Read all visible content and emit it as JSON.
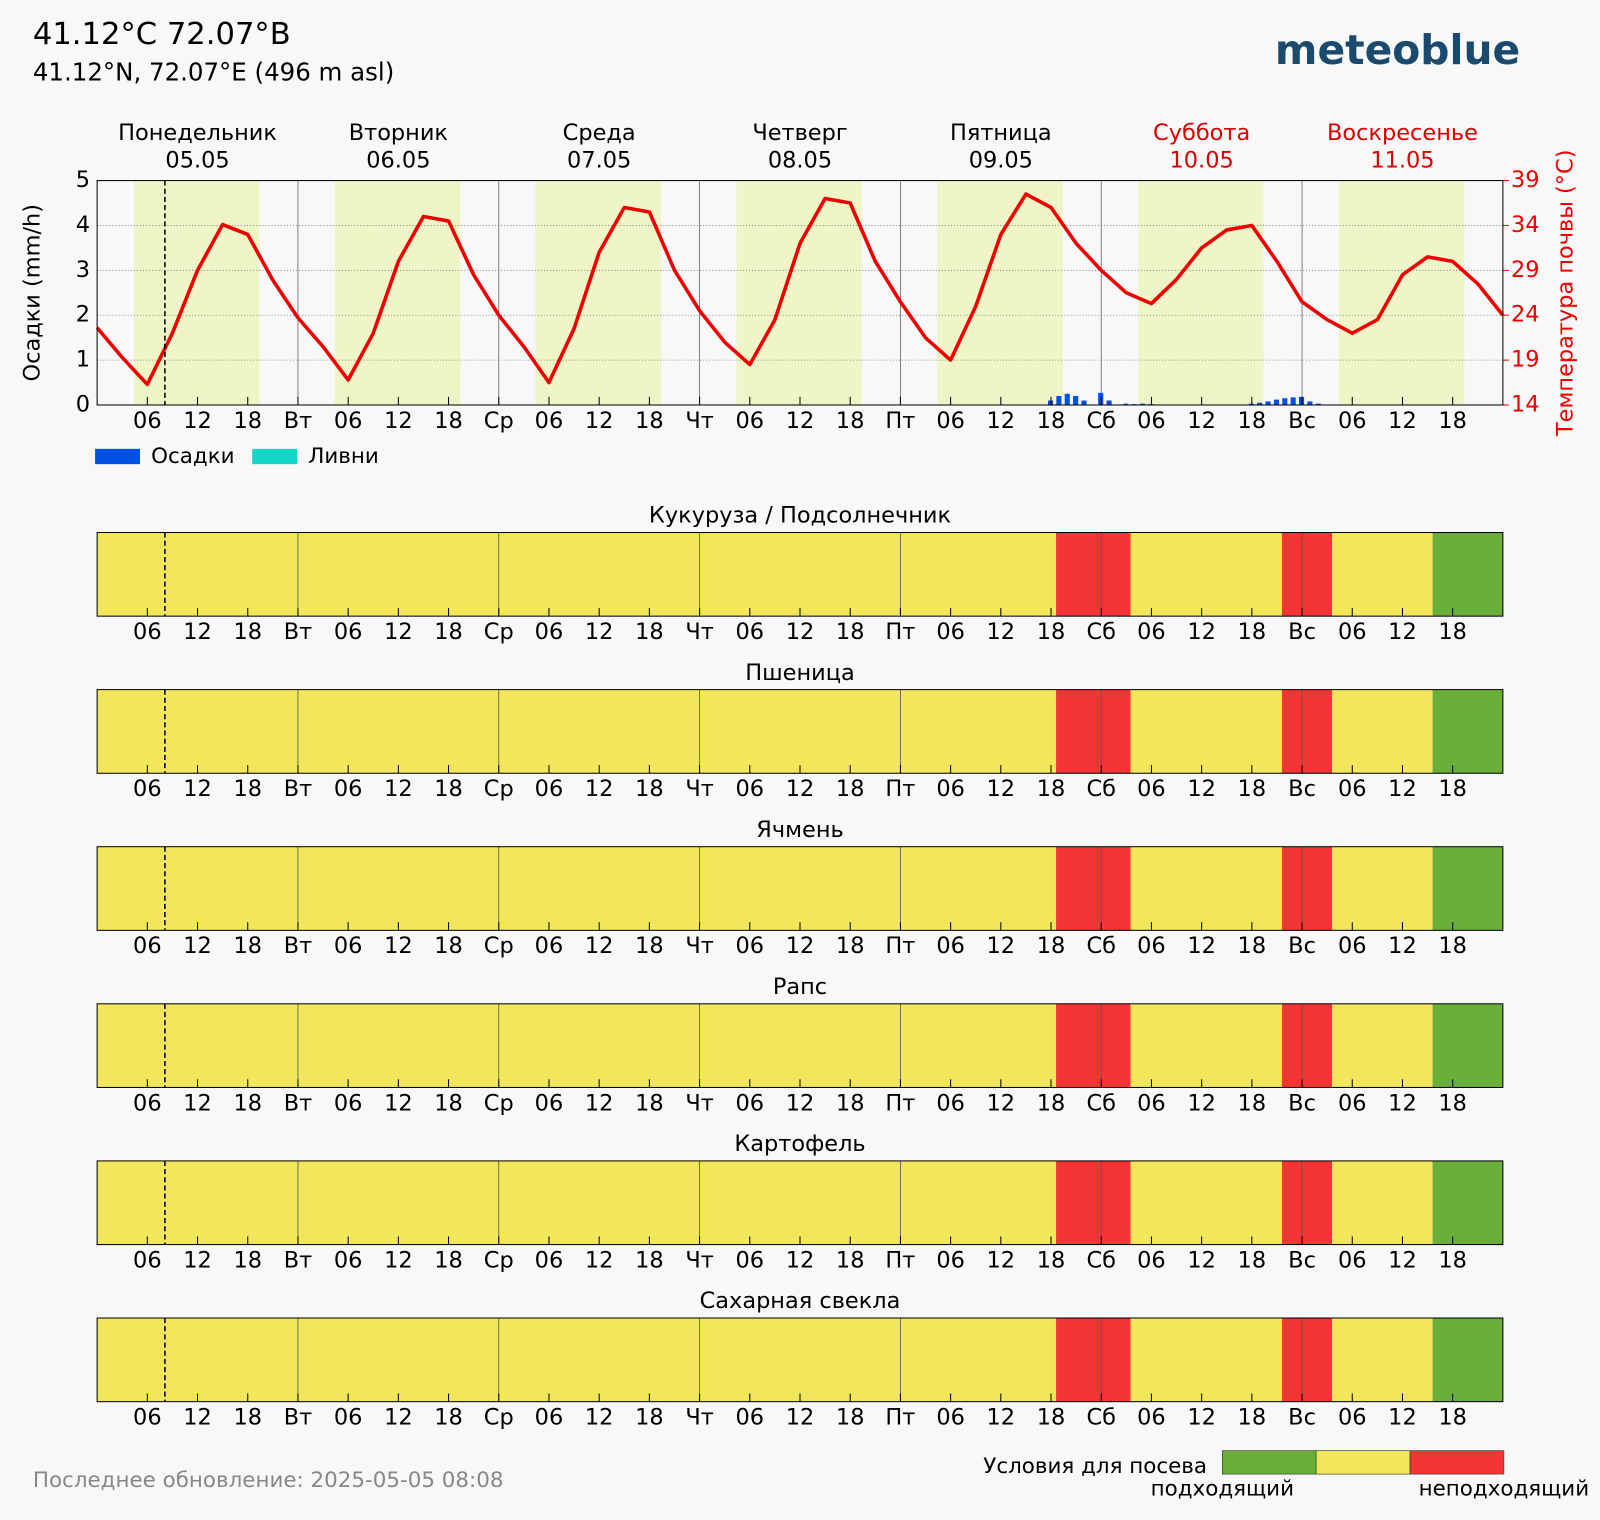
{
  "header": {
    "title": "41.12°C 72.07°B",
    "subtitle": "41.12°N, 72.07°E (496 m asl)",
    "logo": "meteoblue"
  },
  "footer": "Последнее обновление: 2025-05-05 08:08",
  "sowing_legend": {
    "title": "Условия для посева",
    "labels": [
      "подходящий",
      "неподходящий"
    ],
    "colors": [
      "#6aaf3a",
      "#f2e65a",
      "#f53535"
    ]
  },
  "chart_data": [
    {
      "type": "meteogram",
      "days": [
        {
          "name": "Понедельник",
          "date": "05.05",
          "color": "#000000"
        },
        {
          "name": "Вторник",
          "date": "06.05",
          "color": "#000000"
        },
        {
          "name": "Среда",
          "date": "07.05",
          "color": "#000000"
        },
        {
          "name": "Четверг",
          "date": "08.05",
          "color": "#000000"
        },
        {
          "name": "Пятница",
          "date": "09.05",
          "color": "#000000"
        },
        {
          "name": "Суббота",
          "date": "10.05",
          "color": "#dd0000"
        },
        {
          "name": "Воскресенье",
          "date": "11.05",
          "color": "#dd0000"
        }
      ],
      "ylabel": "Осадки (mm/h)",
      "y2label": "Температура почвы (°C)",
      "xlim": [
        0,
        168
      ],
      "xticks": [
        {
          "value": 6,
          "label": "06"
        },
        {
          "value": 12,
          "label": "12"
        },
        {
          "value": 18,
          "label": "18"
        },
        {
          "value": 24,
          "label": "Вт"
        },
        {
          "value": 30,
          "label": "06"
        },
        {
          "value": 36,
          "label": "12"
        },
        {
          "value": 42,
          "label": "18"
        },
        {
          "value": 48,
          "label": "Ср"
        },
        {
          "value": 54,
          "label": "06"
        },
        {
          "value": 60,
          "label": "12"
        },
        {
          "value": 66,
          "label": "18"
        },
        {
          "value": 72,
          "label": "Чт"
        },
        {
          "value": 78,
          "label": "06"
        },
        {
          "value": 84,
          "label": "12"
        },
        {
          "value": 90,
          "label": "18"
        },
        {
          "value": 96,
          "label": "Пт"
        },
        {
          "value": 102,
          "label": "06"
        },
        {
          "value": 108,
          "label": "12"
        },
        {
          "value": 114,
          "label": "18"
        },
        {
          "value": 120,
          "label": "Сб"
        },
        {
          "value": 126,
          "label": "06"
        },
        {
          "value": 132,
          "label": "12"
        },
        {
          "value": 138,
          "label": "18"
        },
        {
          "value": 144,
          "label": "Вс"
        },
        {
          "value": 150,
          "label": "06"
        },
        {
          "value": 156,
          "label": "12"
        },
        {
          "value": 162,
          "label": "18"
        }
      ],
      "ylim": [
        0,
        5
      ],
      "yticks": [
        0,
        1,
        2,
        3,
        4,
        5
      ],
      "y2lim": [
        14,
        39
      ],
      "y2ticks": [
        14,
        19,
        24,
        29,
        34,
        39
      ],
      "grid": true,
      "now": 8.1,
      "daylight": [
        [
          4.4,
          19.4
        ],
        [
          28.4,
          43.4
        ],
        [
          52.4,
          67.4
        ],
        [
          76.4,
          91.4
        ],
        [
          100.4,
          115.4
        ],
        [
          124.4,
          139.4
        ],
        [
          148.4,
          163.4
        ]
      ],
      "bar_x": [
        114,
        115,
        116,
        117,
        118,
        120,
        121,
        123,
        124,
        125,
        126,
        138,
        139,
        140,
        141,
        142,
        143,
        144,
        145,
        146
      ],
      "series": [
        {
          "name": "Осадки",
          "color": "#0050e6",
          "values": [
            0.1,
            0.2,
            0.25,
            0.2,
            0.1,
            0.27,
            0.1,
            0.03,
            0.02,
            0.03,
            0.02,
            0.03,
            0.05,
            0.08,
            0.12,
            0.15,
            0.17,
            0.18,
            0.08,
            0.03
          ]
        },
        {
          "name": "Ливни",
          "color": "#12d6c8",
          "values": [
            0,
            0,
            0,
            0,
            0,
            0,
            0,
            0,
            0,
            0,
            0,
            0,
            0,
            0,
            0,
            0,
            0,
            0,
            0,
            0
          ]
        },
        {
          "name": "Температура почвы",
          "axis": "y2",
          "color": "#ee0000",
          "x": [
            0,
            3,
            6,
            9,
            12,
            15,
            18,
            21,
            24,
            27,
            30,
            33,
            36,
            39,
            42,
            45,
            48,
            51,
            54,
            57,
            60,
            63,
            66,
            69,
            72,
            75,
            78,
            81,
            84,
            87,
            90,
            93,
            96,
            99,
            102,
            105,
            108,
            111,
            114,
            117,
            120,
            123,
            126,
            129,
            132,
            135,
            138,
            141,
            144,
            147,
            150,
            153,
            156,
            159,
            162,
            165,
            168
          ],
          "values": [
            22.6,
            19.3,
            16.3,
            22,
            29,
            34.1,
            33,
            27.9,
            23.7,
            20.5,
            16.8,
            22,
            30,
            35,
            34.5,
            28.5,
            24,
            20.5,
            16.5,
            22.5,
            31,
            36,
            35.5,
            29,
            24.5,
            21,
            18.5,
            23.5,
            32,
            37,
            36.5,
            30,
            25.5,
            21.5,
            19,
            25,
            33,
            37.5,
            36,
            32,
            29,
            26.5,
            25.3,
            28,
            31.5,
            33.5,
            34,
            30,
            25.5,
            23.5,
            22,
            23.5,
            28.5,
            30.5,
            30,
            27.5,
            24
          ]
        }
      ]
    },
    {
      "type": "timeline",
      "title": "Кукуруза / Подсолнечник",
      "xlim": [
        0,
        168
      ],
      "segments": [
        {
          "from": 0,
          "to": 114.6,
          "color": "#f2e65a"
        },
        {
          "from": 114.6,
          "to": 123.5,
          "color": "#f53535"
        },
        {
          "from": 123.5,
          "to": 141.6,
          "color": "#f2e65a"
        },
        {
          "from": 141.6,
          "to": 147.6,
          "color": "#f53535"
        },
        {
          "from": 147.6,
          "to": 159.6,
          "color": "#f2e65a"
        },
        {
          "from": 159.6,
          "to": 168,
          "color": "#6aaf3a"
        }
      ]
    },
    {
      "type": "timeline",
      "title": "Пшеница",
      "xlim": [
        0,
        168
      ],
      "segments": [
        {
          "from": 0,
          "to": 114.6,
          "color": "#f2e65a"
        },
        {
          "from": 114.6,
          "to": 123.5,
          "color": "#f53535"
        },
        {
          "from": 123.5,
          "to": 141.6,
          "color": "#f2e65a"
        },
        {
          "from": 141.6,
          "to": 147.6,
          "color": "#f53535"
        },
        {
          "from": 147.6,
          "to": 159.6,
          "color": "#f2e65a"
        },
        {
          "from": 159.6,
          "to": 168,
          "color": "#6aaf3a"
        }
      ]
    },
    {
      "type": "timeline",
      "title": "Ячмень",
      "xlim": [
        0,
        168
      ],
      "segments": [
        {
          "from": 0,
          "to": 114.6,
          "color": "#f2e65a"
        },
        {
          "from": 114.6,
          "to": 123.5,
          "color": "#f53535"
        },
        {
          "from": 123.5,
          "to": 141.6,
          "color": "#f2e65a"
        },
        {
          "from": 141.6,
          "to": 147.6,
          "color": "#f53535"
        },
        {
          "from": 147.6,
          "to": 159.6,
          "color": "#f2e65a"
        },
        {
          "from": 159.6,
          "to": 168,
          "color": "#6aaf3a"
        }
      ]
    },
    {
      "type": "timeline",
      "title": "Рапс",
      "xlim": [
        0,
        168
      ],
      "segments": [
        {
          "from": 0,
          "to": 114.6,
          "color": "#f2e65a"
        },
        {
          "from": 114.6,
          "to": 123.5,
          "color": "#f53535"
        },
        {
          "from": 123.5,
          "to": 141.6,
          "color": "#f2e65a"
        },
        {
          "from": 141.6,
          "to": 147.6,
          "color": "#f53535"
        },
        {
          "from": 147.6,
          "to": 159.6,
          "color": "#f2e65a"
        },
        {
          "from": 159.6,
          "to": 168,
          "color": "#6aaf3a"
        }
      ]
    },
    {
      "type": "timeline",
      "title": "Картофель",
      "xlim": [
        0,
        168
      ],
      "segments": [
        {
          "from": 0,
          "to": 114.6,
          "color": "#f2e65a"
        },
        {
          "from": 114.6,
          "to": 123.5,
          "color": "#f53535"
        },
        {
          "from": 123.5,
          "to": 141.6,
          "color": "#f2e65a"
        },
        {
          "from": 141.6,
          "to": 147.6,
          "color": "#f53535"
        },
        {
          "from": 147.6,
          "to": 159.6,
          "color": "#f2e65a"
        },
        {
          "from": 159.6,
          "to": 168,
          "color": "#6aaf3a"
        }
      ]
    },
    {
      "type": "timeline",
      "title": "Сахарная свекла",
      "xlim": [
        0,
        168
      ],
      "segments": [
        {
          "from": 0,
          "to": 114.6,
          "color": "#f2e65a"
        },
        {
          "from": 114.6,
          "to": 123.5,
          "color": "#f53535"
        },
        {
          "from": 123.5,
          "to": 141.6,
          "color": "#f2e65a"
        },
        {
          "from": 141.6,
          "to": 147.6,
          "color": "#f53535"
        },
        {
          "from": 147.6,
          "to": 159.6,
          "color": "#f2e65a"
        },
        {
          "from": 159.6,
          "to": 168,
          "color": "#6aaf3a"
        }
      ]
    }
  ]
}
